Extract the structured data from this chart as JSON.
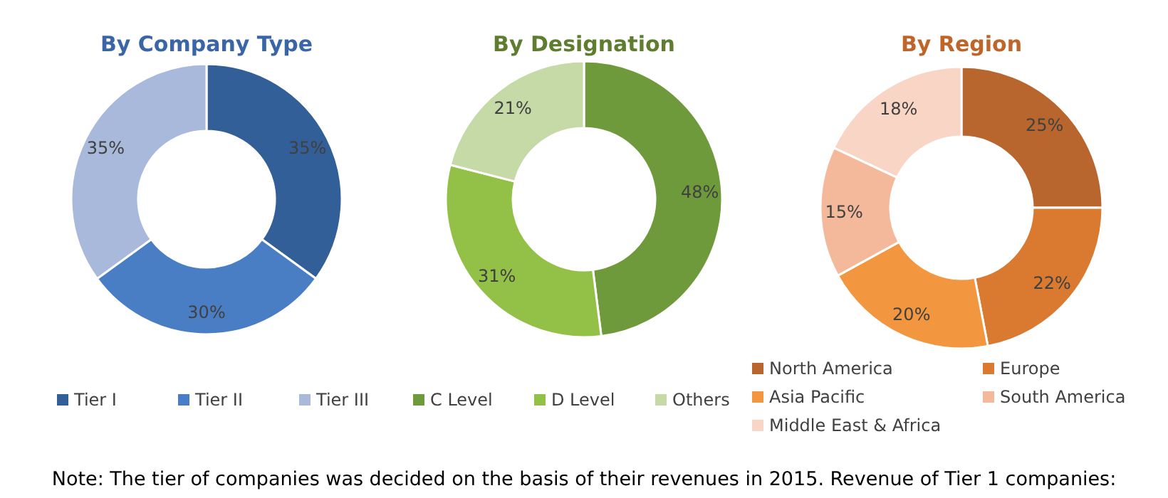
{
  "chart_data": [
    {
      "type": "donut",
      "title": "By Company Type",
      "categories": [
        "Tier I",
        "Tier II",
        "Tier III"
      ],
      "values": [
        35,
        30,
        35
      ],
      "value_labels": [
        "35%",
        "30%",
        "35%"
      ],
      "colors": [
        "#325f98",
        "#4a7ec4",
        "#a8b9dc"
      ],
      "legend": "bottom",
      "annotations": [
        "Note: The tier of companies was decided on the basis of their revenues in 2015. Revenue of Tier 1 companies:"
      ]
    },
    {
      "type": "donut",
      "title": "By Designation",
      "categories": [
        "C Level",
        "D Level",
        "Others"
      ],
      "values": [
        48,
        31,
        21
      ],
      "value_labels": [
        "48%",
        "31%",
        "21%"
      ],
      "colors": [
        "#6f9a3c",
        "#93c047",
        "#c6daa8"
      ],
      "legend": "bottom"
    },
    {
      "type": "donut",
      "title": "By Region",
      "categories": [
        "North America",
        "Europe",
        "Asia Pacific",
        "South America",
        "Middle East & Africa"
      ],
      "values": [
        25,
        22,
        20,
        15,
        18
      ],
      "value_labels": [
        "25%",
        "22%",
        "20%",
        "15%",
        "18%"
      ],
      "colors": [
        "#b8662e",
        "#d97a30",
        "#f2963f",
        "#f4b99a",
        "#f9d5c5"
      ],
      "legend": "bottom"
    }
  ]
}
